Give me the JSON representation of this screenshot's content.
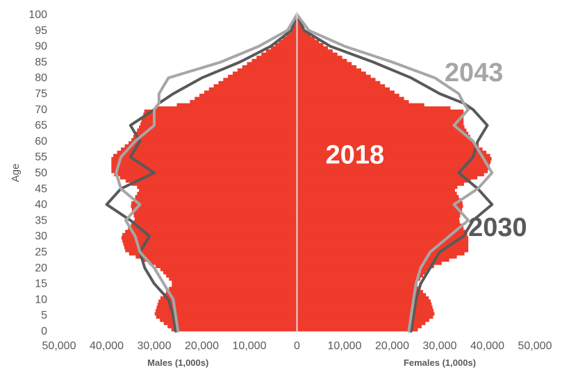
{
  "chart_data": {
    "type": "bar",
    "orientation": "horizontal-population-pyramid",
    "ylabel": "Age",
    "xlabel_left": "Males (1,000s)",
    "xlabel_right": "Females (1,000s)",
    "x_ticks": [
      "50,000",
      "40,000",
      "30,000",
      "20,000",
      "10,000",
      "0",
      "10,000",
      "20,000",
      "30,000",
      "40,000",
      "50,000"
    ],
    "y_ticks": [
      "0",
      "5",
      "10",
      "15",
      "20",
      "25",
      "30",
      "35",
      "40",
      "45",
      "50",
      "55",
      "60",
      "65",
      "70",
      "75",
      "80",
      "85",
      "90",
      "95",
      "100"
    ],
    "xlim": [
      -50000,
      50000
    ],
    "ylim": [
      0,
      100
    ],
    "ages": [
      0,
      5,
      10,
      15,
      20,
      25,
      30,
      35,
      40,
      45,
      50,
      55,
      60,
      65,
      70,
      72,
      75,
      80,
      85,
      90,
      95,
      100
    ],
    "series": [
      {
        "name": "2018",
        "kind": "bars",
        "color": "#EE3B2B",
        "male": [
          26000,
          30000,
          29000,
          26000,
          29000,
          36000,
          37000,
          34000,
          35000,
          33000,
          39000,
          39000,
          35000,
          33000,
          32000,
          23000,
          20000,
          15000,
          10000,
          5000,
          1000,
          0
        ],
        "female": [
          25000,
          29000,
          28000,
          25000,
          28000,
          36000,
          36000,
          34000,
          35000,
          33000,
          40000,
          41000,
          37000,
          35000,
          35000,
          24000,
          21000,
          16000,
          11000,
          6000,
          1500,
          0
        ]
      },
      {
        "name": "2030",
        "kind": "line",
        "color": "#595959",
        "male": [
          25500,
          26000,
          27000,
          30000,
          32000,
          33000,
          31000,
          35000,
          40000,
          37000,
          30000,
          35000,
          33000,
          35000,
          30000,
          29000,
          26000,
          20000,
          12000,
          5500,
          1200,
          0
        ],
        "female": [
          24000,
          24500,
          25000,
          26000,
          28000,
          30000,
          35000,
          37000,
          41000,
          38000,
          34000,
          37000,
          38000,
          40000,
          37000,
          35000,
          30000,
          24000,
          16000,
          7000,
          1500,
          0
        ]
      },
      {
        "name": "2043",
        "kind": "line",
        "color": "#A6A6A6",
        "male": [
          25000,
          25500,
          26000,
          28000,
          30000,
          33000,
          34000,
          36000,
          33000,
          37000,
          38000,
          37000,
          34000,
          30000,
          30000,
          29000,
          29000,
          27000,
          16000,
          8000,
          2000,
          0
        ],
        "female": [
          23500,
          24000,
          24500,
          25000,
          26000,
          28000,
          32000,
          36000,
          33000,
          38000,
          41000,
          39000,
          37000,
          33000,
          36000,
          35000,
          34000,
          29000,
          20000,
          10000,
          2500,
          0
        ]
      }
    ],
    "annotations": [
      {
        "text": "2018",
        "series": "2018",
        "x": 6000,
        "y": 53,
        "color": "#ffffff",
        "size": 38
      },
      {
        "text": "2043",
        "series": "2043",
        "x": 31000,
        "y": 79,
        "color": "#A6A6A6",
        "size": 38
      },
      {
        "text": "2030",
        "series": "2030",
        "x": 36000,
        "y": 30,
        "color": "#595959",
        "size": 38
      }
    ],
    "grid": false,
    "legend": "none"
  }
}
